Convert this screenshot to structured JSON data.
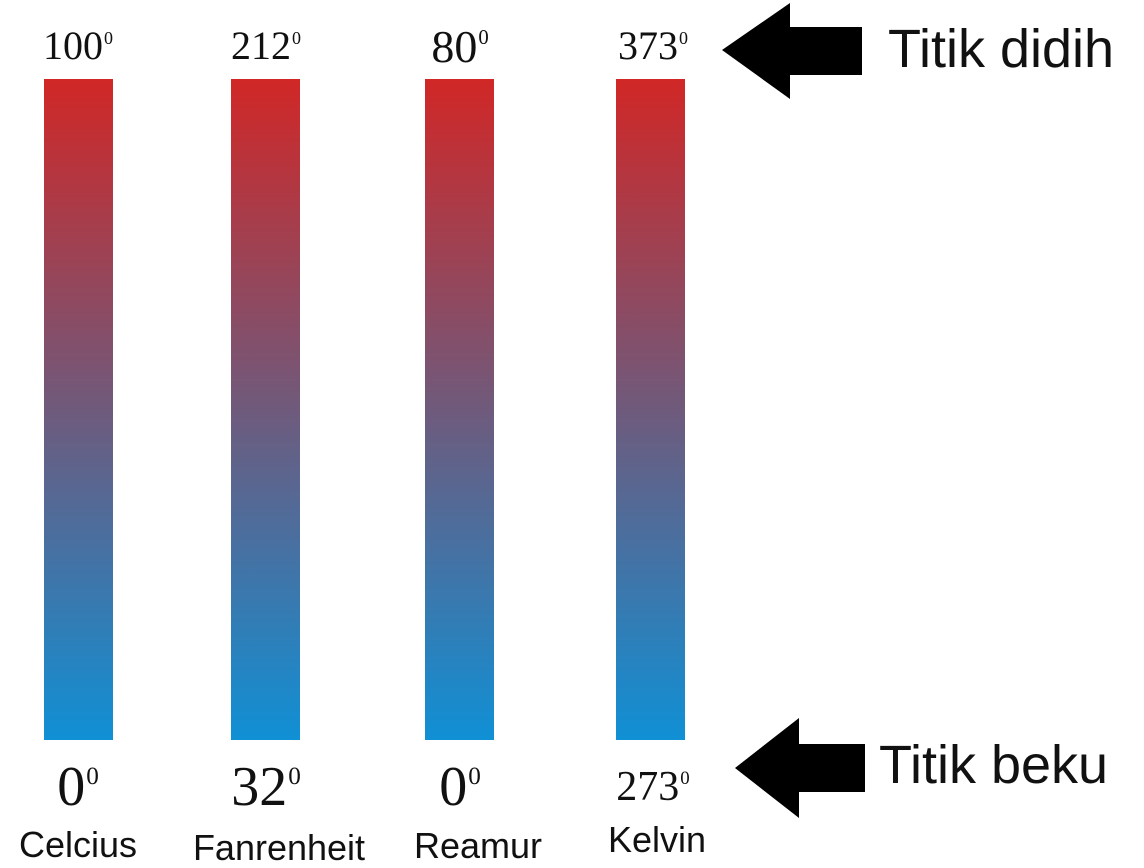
{
  "colors": {
    "bar_top": "#d12726",
    "bar_bottom": "#1090d5",
    "arrow": "#000000"
  },
  "scales": [
    {
      "name": "Celcius",
      "boiling": "100",
      "freezing": "0",
      "degree_mark": "0"
    },
    {
      "name": "Fanrenheit",
      "boiling": "212",
      "freezing": "32",
      "degree_mark": "0"
    },
    {
      "name": "Reamur",
      "boiling": "80",
      "freezing": "0",
      "degree_mark": "0"
    },
    {
      "name": "Kelvin",
      "boiling": "373",
      "freezing": "273",
      "degree_mark": "0"
    }
  ],
  "labels": {
    "boiling_point": "Titik didih",
    "freezing_point": "Titik beku"
  },
  "icons": {
    "boiling_arrow": "arrow-left-icon",
    "freezing_arrow": "arrow-left-icon"
  }
}
